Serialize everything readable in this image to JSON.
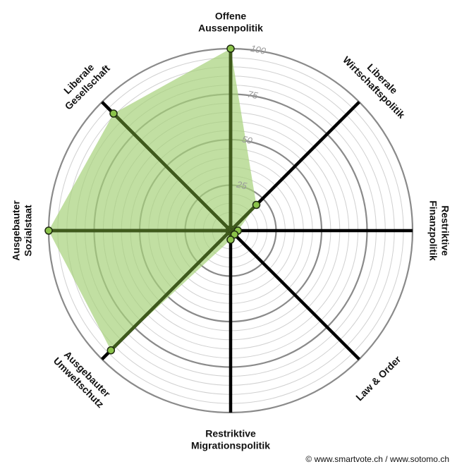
{
  "chart_data": {
    "type": "radar",
    "title": "",
    "range": [
      0,
      100
    ],
    "ticks": [
      "25",
      "50",
      "75",
      "100"
    ],
    "axes": [
      {
        "lines": [
          "Offene",
          "Aussenpolitik"
        ],
        "value": 100
      },
      {
        "lines": [
          "Liberale",
          "Wirtschaftspolitik"
        ],
        "value": 20
      },
      {
        "lines": [
          "Restriktive",
          "Finanzpolitik"
        ],
        "value": 4
      },
      {
        "lines": [
          "Law & Order"
        ],
        "value": 3
      },
      {
        "lines": [
          "Restriktive",
          "Migrationspolitik"
        ],
        "value": 5
      },
      {
        "lines": [
          "Ausgebauter",
          "Umweltschutz"
        ],
        "value": 93
      },
      {
        "lines": [
          "Ausgebauter",
          "Sozialstaat"
        ],
        "value": 100
      },
      {
        "lines": [
          "Liberale",
          "Gesellschaft"
        ],
        "value": 91
      }
    ],
    "grid": true,
    "colors": {
      "area": "#a6d17a",
      "highlight_spoke": "#3f5a1c",
      "spoke": "#000000",
      "grid": "#d0d0d0",
      "grid_major": "#8a8a8a",
      "marker": "#8bc34a"
    }
  },
  "copyright": "© www.smartvote.ch / www.sotomo.ch"
}
